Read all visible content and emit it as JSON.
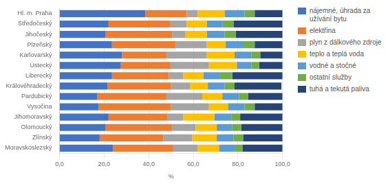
{
  "chart_data": {
    "type": "bar",
    "orientation": "horizontal",
    "stacked": true,
    "categories": [
      "Hl. m. Praha",
      "Středočeský",
      "Jihočeský",
      "Plzeňský",
      "Karlovarský",
      "Ústecký",
      "Liberecký",
      "Královéhradecký",
      "Pardubický",
      "Vysočina",
      "Jihomoravský",
      "Olomoucký",
      "Zlínský",
      "Moravskoslezský"
    ],
    "series": [
      {
        "name": "nájemné, úhrada za\nužívání bytu",
        "color": "#4472C4",
        "values": [
          38.5,
          22.0,
          20.5,
          23.5,
          28.0,
          27.5,
          23.5,
          21.5,
          17.0,
          17.5,
          22.0,
          20.5,
          18.0,
          24.0
        ]
      },
      {
        "name": "elektřina",
        "color": "#ED7D31",
        "values": [
          18.5,
          27.5,
          30.0,
          28.5,
          20.0,
          22.0,
          25.5,
          28.5,
          31.0,
          32.5,
          26.5,
          30.0,
          28.5,
          27.0
        ]
      },
      {
        "name": "plyn z dálkového zdroje",
        "color": "#A5A5A5",
        "values": [
          5.0,
          7.5,
          6.0,
          14.0,
          18.0,
          17.5,
          6.5,
          8.5,
          16.0,
          17.0,
          7.0,
          10.5,
          13.0,
          11.0
        ]
      },
      {
        "name": "teplo a teplá voda",
        "color": "#FFC000",
        "values": [
          12.0,
          9.0,
          9.5,
          8.5,
          12.5,
          12.5,
          9.0,
          8.0,
          9.0,
          8.5,
          14.0,
          9.5,
          11.0,
          9.5
        ]
      },
      {
        "name": "vodné a stočné",
        "color": "#5B9BD5",
        "values": [
          9.0,
          7.0,
          8.0,
          8.0,
          7.5,
          6.5,
          7.5,
          7.5,
          7.5,
          7.5,
          7.5,
          7.0,
          7.5,
          7.0
        ]
      },
      {
        "name": "ostatní služby",
        "color": "#70AD47",
        "values": [
          4.5,
          5.0,
          5.0,
          5.0,
          4.0,
          3.5,
          5.5,
          4.5,
          4.0,
          4.5,
          4.0,
          4.0,
          4.5,
          3.5
        ]
      },
      {
        "name": "tuhá a tekutá paliva",
        "color": "#264478",
        "values": [
          12.5,
          22.0,
          21.0,
          12.5,
          10.0,
          10.5,
          22.5,
          21.0,
          15.5,
          12.5,
          19.0,
          18.5,
          17.5,
          18.0
        ]
      }
    ],
    "xlabel": "%",
    "xlim": [
      0,
      100
    ],
    "xticks": [
      {
        "value": 0,
        "label": "0,0"
      },
      {
        "value": 20,
        "label": "20,0"
      },
      {
        "value": 40,
        "label": "40,0"
      },
      {
        "value": 60,
        "label": "60,0"
      },
      {
        "value": 80,
        "label": "80,0"
      },
      {
        "value": 100,
        "label": "100,0"
      }
    ],
    "grid": true,
    "legend": "right"
  }
}
